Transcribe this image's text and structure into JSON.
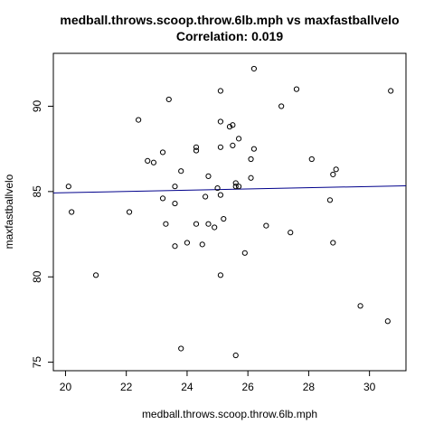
{
  "chart_data": {
    "type": "scatter",
    "title": "medball.throws.scoop.throw.6lb.mph vs maxfastballvelo",
    "subtitle": "Correlation: 0.019",
    "xlabel": "medball.throws.scoop.throw.6lb.mph",
    "ylabel": "maxfastballvelo",
    "xlim": [
      19.6,
      31.2
    ],
    "ylim": [
      74.5,
      93.1
    ],
    "xticks": [
      20,
      22,
      24,
      26,
      28,
      30
    ],
    "yticks": [
      75,
      80,
      85,
      90
    ],
    "grid": false,
    "colors": {
      "points": "#000000",
      "fit_line": "#00008b"
    },
    "fit_line": {
      "x": [
        19.6,
        31.2
      ],
      "y": [
        84.92,
        85.34
      ]
    },
    "points": [
      {
        "x": 20.1,
        "y": 85.3
      },
      {
        "x": 20.2,
        "y": 83.8
      },
      {
        "x": 21.0,
        "y": 80.1
      },
      {
        "x": 22.1,
        "y": 83.8
      },
      {
        "x": 22.4,
        "y": 89.2
      },
      {
        "x": 22.7,
        "y": 86.8
      },
      {
        "x": 22.9,
        "y": 86.7
      },
      {
        "x": 23.2,
        "y": 87.3
      },
      {
        "x": 23.2,
        "y": 84.6
      },
      {
        "x": 23.3,
        "y": 83.1
      },
      {
        "x": 23.4,
        "y": 90.4
      },
      {
        "x": 23.6,
        "y": 85.3
      },
      {
        "x": 23.6,
        "y": 84.3
      },
      {
        "x": 23.6,
        "y": 81.8
      },
      {
        "x": 23.8,
        "y": 86.2
      },
      {
        "x": 23.8,
        "y": 75.8
      },
      {
        "x": 24.0,
        "y": 82.0
      },
      {
        "x": 24.3,
        "y": 87.6
      },
      {
        "x": 24.3,
        "y": 87.4
      },
      {
        "x": 24.3,
        "y": 83.1
      },
      {
        "x": 24.5,
        "y": 81.9
      },
      {
        "x": 24.6,
        "y": 84.7
      },
      {
        "x": 24.7,
        "y": 85.9
      },
      {
        "x": 24.7,
        "y": 83.1
      },
      {
        "x": 24.9,
        "y": 82.9
      },
      {
        "x": 25.0,
        "y": 85.2
      },
      {
        "x": 25.1,
        "y": 90.9
      },
      {
        "x": 25.1,
        "y": 89.1
      },
      {
        "x": 25.1,
        "y": 87.6
      },
      {
        "x": 25.1,
        "y": 84.8
      },
      {
        "x": 25.1,
        "y": 80.1
      },
      {
        "x": 25.2,
        "y": 83.4
      },
      {
        "x": 25.4,
        "y": 88.8
      },
      {
        "x": 25.5,
        "y": 88.9
      },
      {
        "x": 25.5,
        "y": 87.7
      },
      {
        "x": 25.6,
        "y": 85.5
      },
      {
        "x": 25.6,
        "y": 85.3
      },
      {
        "x": 25.7,
        "y": 85.3
      },
      {
        "x": 25.7,
        "y": 88.1
      },
      {
        "x": 25.6,
        "y": 75.4
      },
      {
        "x": 25.9,
        "y": 81.4
      },
      {
        "x": 26.1,
        "y": 86.9
      },
      {
        "x": 26.1,
        "y": 85.8
      },
      {
        "x": 26.2,
        "y": 87.5
      },
      {
        "x": 26.2,
        "y": 92.2
      },
      {
        "x": 26.6,
        "y": 83.0
      },
      {
        "x": 27.1,
        "y": 90.0
      },
      {
        "x": 27.4,
        "y": 82.6
      },
      {
        "x": 27.6,
        "y": 91.0
      },
      {
        "x": 28.1,
        "y": 86.9
      },
      {
        "x": 28.7,
        "y": 84.5
      },
      {
        "x": 28.8,
        "y": 86.0
      },
      {
        "x": 28.8,
        "y": 82.0
      },
      {
        "x": 28.9,
        "y": 86.3
      },
      {
        "x": 29.7,
        "y": 78.3
      },
      {
        "x": 30.6,
        "y": 77.4
      },
      {
        "x": 30.7,
        "y": 90.9
      }
    ]
  }
}
